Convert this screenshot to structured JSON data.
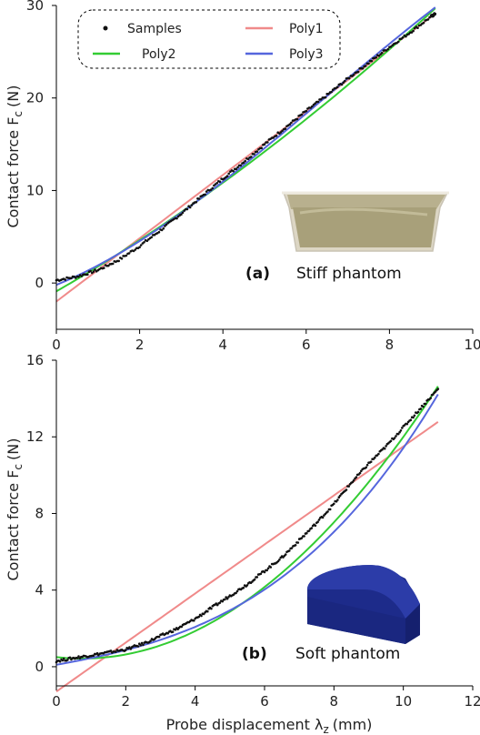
{
  "chart_data": [
    {
      "type": "line",
      "panel_tag": "(a)",
      "panel_label": "Stiff phantom",
      "ylabel": "Contact force F",
      "ylabel_sub": "c",
      "ylabel_unit": "(N)",
      "xlabel": "",
      "xlim": [
        0,
        10
      ],
      "ylim": [
        -5,
        30
      ],
      "xticks": [
        0,
        2,
        4,
        6,
        8,
        10
      ],
      "yticks": [
        0,
        10,
        20,
        30
      ],
      "legend": {
        "placement": "top-left",
        "entries": [
          "Samples",
          "Poly1",
          "Poly2",
          "Poly3"
        ]
      },
      "x_range": [
        0,
        9.1
      ],
      "series": [
        {
          "name": "Samples",
          "kind": "scatter",
          "color": "#111111",
          "x": [
            0,
            0.5,
            1,
            1.5,
            2,
            2.5,
            3,
            3.5,
            4,
            4.5,
            5,
            5.5,
            6,
            6.5,
            7,
            7.5,
            8,
            8.5,
            9,
            9.1
          ],
          "y": [
            0.3,
            0.7,
            1.4,
            2.5,
            4.0,
            5.7,
            7.5,
            9.4,
            11.3,
            13.1,
            15.0,
            16.8,
            18.6,
            20.3,
            22.1,
            23.8,
            25.5,
            27.1,
            28.8,
            29.1
          ]
        },
        {
          "name": "Poly1",
          "kind": "line",
          "color": "#f08a8a",
          "coef": [
            -2.0,
            3.42
          ]
        },
        {
          "name": "Poly2",
          "kind": "line",
          "color": "#33cc33",
          "coef": [
            -0.9,
            2.6,
            0.0837
          ]
        },
        {
          "name": "Poly3",
          "kind": "line",
          "color": "#5566dd",
          "coef": [
            -0.2,
            1.82,
            0.306,
            -0.0158
          ]
        }
      ]
    },
    {
      "type": "line",
      "panel_tag": "(b)",
      "panel_label": "Soft phantom",
      "ylabel": "Contact force F",
      "ylabel_sub": "c",
      "ylabel_unit": "(N)",
      "xlabel": "Probe displacement λ",
      "xlabel_sub": "z",
      "xlabel_unit": "(mm)",
      "xlim": [
        0,
        12
      ],
      "ylim": [
        -1,
        16
      ],
      "xticks": [
        0,
        2,
        4,
        6,
        8,
        10,
        12
      ],
      "yticks": [
        0,
        4,
        8,
        12,
        16
      ],
      "x_range": [
        0,
        11
      ],
      "series": [
        {
          "name": "Samples",
          "kind": "scatter",
          "color": "#111111",
          "x": [
            0,
            0.5,
            1,
            1.5,
            2,
            2.5,
            3,
            3.5,
            4,
            4.5,
            5,
            5.5,
            6,
            6.5,
            7,
            7.5,
            8,
            8.5,
            9,
            9.5,
            10,
            10.5,
            11
          ],
          "y": [
            0.3,
            0.45,
            0.6,
            0.75,
            0.9,
            1.2,
            1.6,
            2.0,
            2.5,
            3.1,
            3.7,
            4.3,
            5.0,
            5.7,
            6.6,
            7.5,
            8.5,
            9.6,
            10.6,
            11.5,
            12.5,
            13.5,
            14.5
          ]
        },
        {
          "name": "Poly1",
          "kind": "line",
          "color": "#f08a8a",
          "coef": [
            -1.3,
            1.28
          ]
        },
        {
          "name": "Poly2",
          "kind": "line",
          "color": "#33cc33",
          "coef": [
            0.5,
            -0.2,
            0.135
          ]
        },
        {
          "name": "Poly3",
          "kind": "line",
          "color": "#5566dd",
          "coef": [
            0.1,
            0.33,
            0.0152,
            0.0065
          ]
        }
      ]
    }
  ]
}
